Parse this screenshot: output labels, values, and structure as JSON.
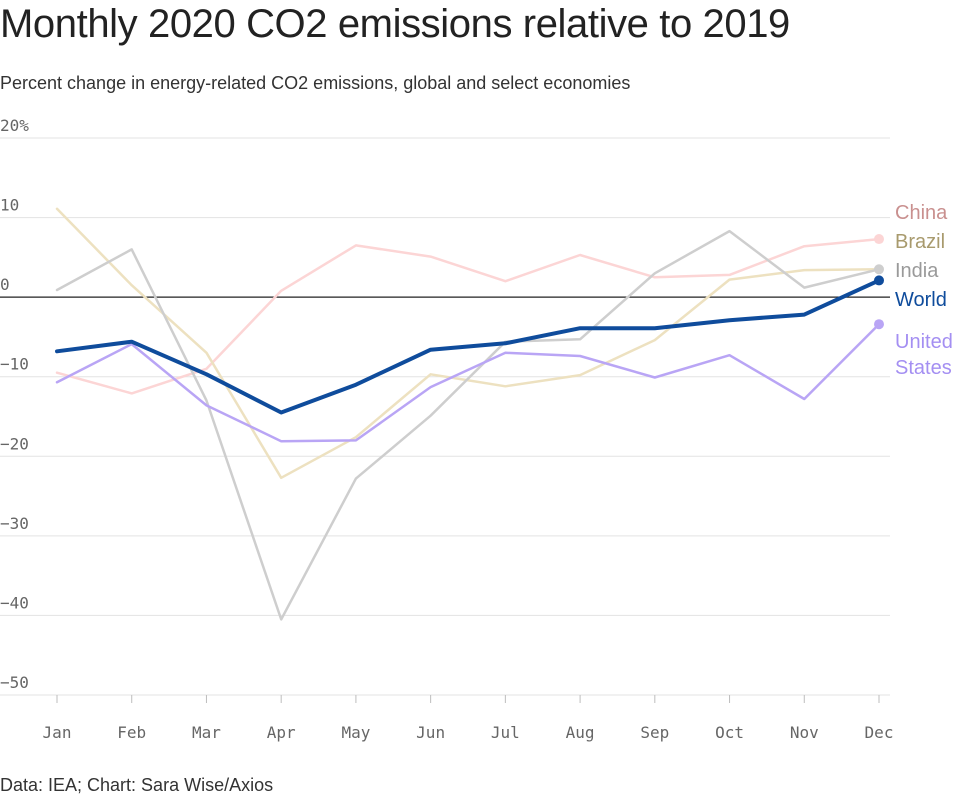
{
  "header": {
    "title": "Monthly 2020 CO2 emissions relative to 2019",
    "subtitle": "Percent change in energy-related CO2 emissions, global and select economies"
  },
  "footer": {
    "source": "Data: IEA; Chart: Sara Wise/Axios"
  },
  "chart_data": {
    "type": "line",
    "title": "Monthly 2020 CO2 emissions relative to 2019",
    "subtitle": "Percent change in energy-related CO2 emissions, global and select economies",
    "categories": [
      "Jan",
      "Feb",
      "Mar",
      "Apr",
      "May",
      "Jun",
      "Jul",
      "Aug",
      "Sep",
      "Oct",
      "Nov",
      "Dec"
    ],
    "y_ticks": [
      20,
      10,
      0,
      -10,
      -20,
      -30,
      -40,
      -50
    ],
    "y_tick_labels": [
      "20%",
      "10",
      "0",
      "−10",
      "−20",
      "−30",
      "−40",
      "−50"
    ],
    "ylim": [
      -50,
      20
    ],
    "grid": true,
    "zero_line": true,
    "series": [
      {
        "name": "China",
        "label_lines": [
          "China"
        ],
        "color": "#fcd5d5",
        "label_color": "#c9908f",
        "width": 2.5,
        "end_marker": true,
        "values": [
          -9.5,
          -12.1,
          -9.0,
          0.8,
          6.5,
          5.1,
          2.0,
          5.3,
          2.5,
          2.8,
          6.4,
          7.3
        ]
      },
      {
        "name": "Brazil",
        "label_lines": [
          "Brazil"
        ],
        "color": "#ede1c0",
        "label_color": "#a89a6d",
        "width": 2.5,
        "end_marker": false,
        "values": [
          11.1,
          1.5,
          -7.0,
          -22.7,
          -17.6,
          -9.7,
          -11.2,
          -9.8,
          -5.4,
          2.2,
          3.4,
          3.5
        ]
      },
      {
        "name": "India",
        "label_lines": [
          "India"
        ],
        "color": "#cecece",
        "label_color": "#9a9a9a",
        "width": 2.5,
        "end_marker": true,
        "values": [
          0.9,
          6.0,
          -13.0,
          -40.5,
          -22.8,
          -14.9,
          -5.6,
          -5.3,
          3.0,
          8.3,
          1.2,
          3.5
        ]
      },
      {
        "name": "United States",
        "label_lines": [
          "United",
          "States"
        ],
        "color": "#b9a5f5",
        "label_color": "#a48ff2",
        "width": 2.5,
        "end_marker": true,
        "values": [
          -10.7,
          -5.9,
          -13.6,
          -18.1,
          -18.0,
          -11.3,
          -7.0,
          -7.4,
          -10.1,
          -7.3,
          -12.8,
          -3.4
        ]
      },
      {
        "name": "World",
        "label_lines": [
          "World"
        ],
        "color": "#0f4c9c",
        "label_color": "#0f4c9c",
        "width": 4,
        "end_marker": true,
        "values": [
          -6.8,
          -5.6,
          -9.7,
          -14.5,
          -11.0,
          -6.6,
          -5.8,
          -3.9,
          -3.9,
          -2.9,
          -2.2,
          2.1
        ]
      }
    ]
  }
}
